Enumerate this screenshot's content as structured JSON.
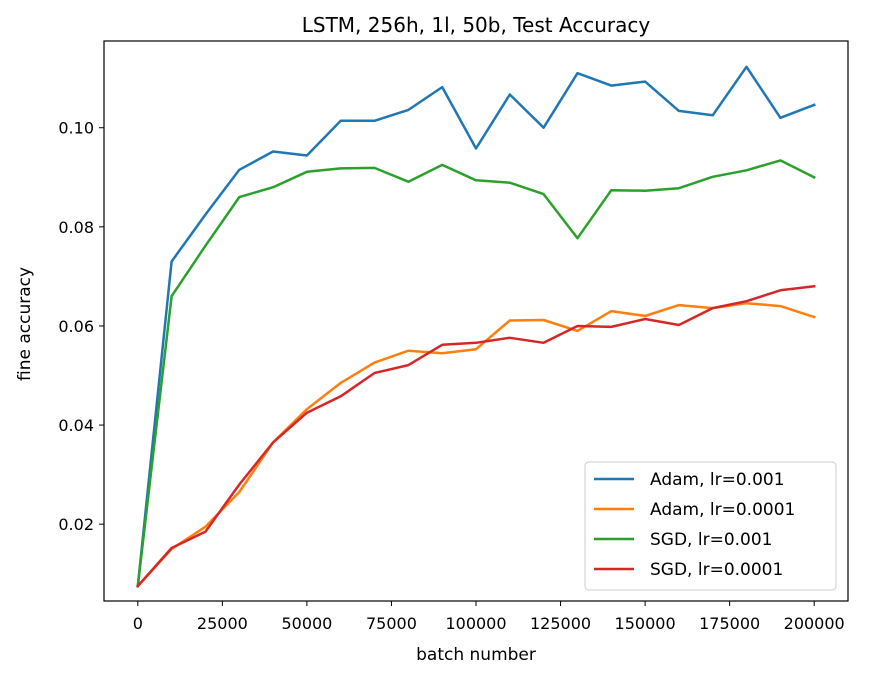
{
  "chart_data": {
    "type": "line",
    "title": "LSTM, 256h, 1l, 50b, Test Accuracy",
    "xlabel": "batch number",
    "ylabel": "fine accuracy",
    "xlim": [
      -10000,
      210000
    ],
    "ylim": [
      0.0045,
      0.1175
    ],
    "xticks": [
      0,
      25000,
      50000,
      75000,
      100000,
      125000,
      150000,
      175000,
      200000
    ],
    "xtick_labels": [
      "0",
      "25000",
      "50000",
      "75000",
      "100000",
      "125000",
      "150000",
      "175000",
      "200000"
    ],
    "yticks": [
      0.02,
      0.04,
      0.06,
      0.08,
      0.1
    ],
    "ytick_labels": [
      "0.02",
      "0.04",
      "0.06",
      "0.08",
      "0.10"
    ],
    "grid": false,
    "legend_position": "lower-right",
    "x": [
      0,
      10000,
      20000,
      30000,
      40000,
      50000,
      60000,
      70000,
      80000,
      90000,
      100000,
      110000,
      120000,
      130000,
      140000,
      150000,
      160000,
      170000,
      180000,
      190000,
      200000
    ],
    "series": [
      {
        "name": "Adam, lr=0.001",
        "color": "#1f77b4",
        "values": [
          0.0075,
          0.073,
          0.0825,
          0.0915,
          0.0952,
          0.0944,
          0.1014,
          0.1014,
          0.1036,
          0.1082,
          0.0958,
          0.1067,
          0.1,
          0.111,
          0.1085,
          0.1093,
          0.1034,
          0.1025,
          0.1123,
          0.102,
          0.1046
        ]
      },
      {
        "name": "Adam, lr=0.0001",
        "color": "#ff7f0e",
        "values": [
          0.0075,
          0.015,
          0.0195,
          0.0265,
          0.0365,
          0.0432,
          0.0485,
          0.0526,
          0.055,
          0.0545,
          0.0553,
          0.0611,
          0.0612,
          0.059,
          0.063,
          0.062,
          0.0642,
          0.0636,
          0.0646,
          0.064,
          0.0618
        ]
      },
      {
        "name": "SGD, lr=0.001",
        "color": "#2ca02c",
        "values": [
          0.0075,
          0.066,
          0.0762,
          0.086,
          0.088,
          0.0911,
          0.0918,
          0.0919,
          0.0891,
          0.0925,
          0.0894,
          0.0889,
          0.0866,
          0.0777,
          0.0874,
          0.0873,
          0.0878,
          0.0901,
          0.0914,
          0.0934,
          0.09
        ]
      },
      {
        "name": "SGD, lr=0.0001",
        "color": "#d62728",
        "values": [
          0.0075,
          0.0152,
          0.0185,
          0.028,
          0.0365,
          0.0425,
          0.0458,
          0.0505,
          0.0521,
          0.0562,
          0.0566,
          0.0576,
          0.0566,
          0.06,
          0.0598,
          0.0614,
          0.0602,
          0.0636,
          0.065,
          0.0672,
          0.068
        ]
      }
    ]
  }
}
